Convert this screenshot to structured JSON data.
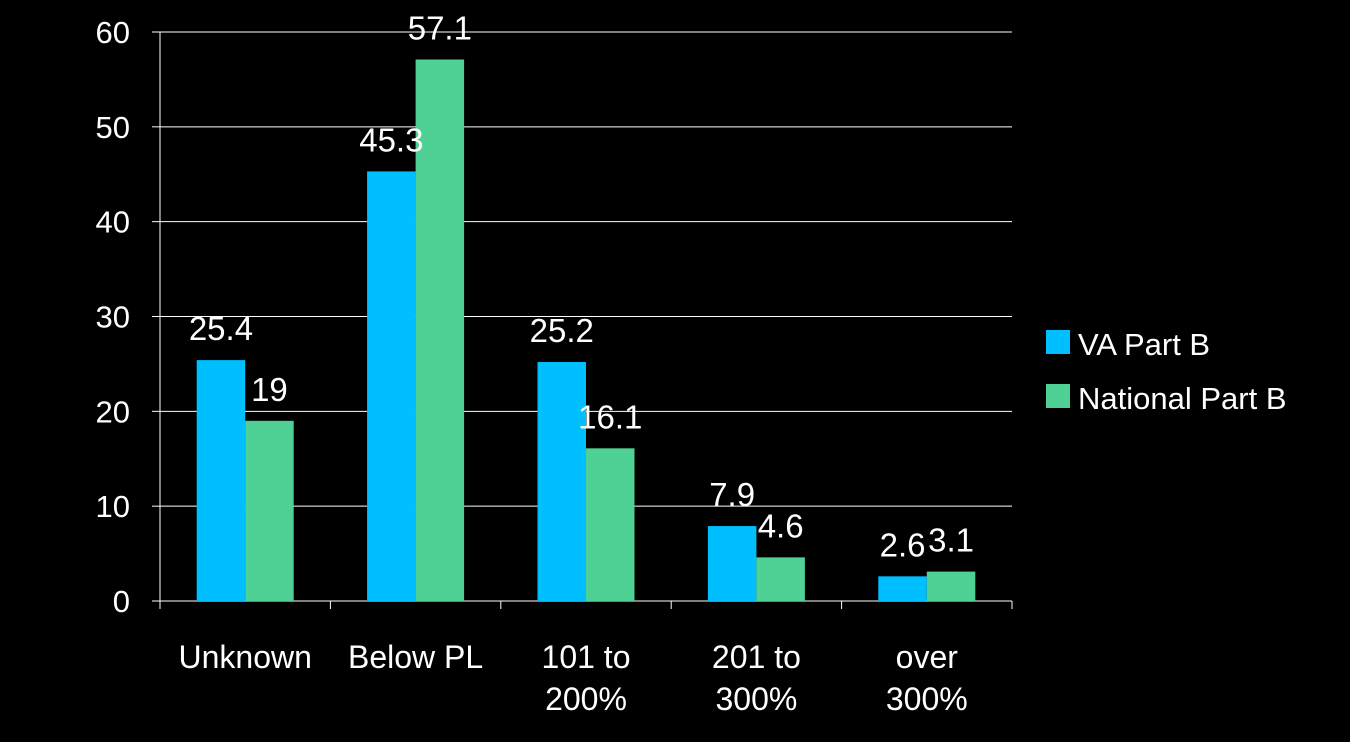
{
  "chart_data": {
    "type": "bar",
    "title": "",
    "xlabel": "",
    "ylabel": "",
    "categories": [
      [
        "Unknown"
      ],
      [
        "Below PL"
      ],
      [
        "101 to",
        "200%"
      ],
      [
        "201 to",
        "300%"
      ],
      [
        "over",
        "300%"
      ]
    ],
    "series": [
      {
        "name": "VA Part B",
        "color": "#00BFFF",
        "values": [
          25.4,
          45.3,
          25.2,
          7.9,
          2.6
        ],
        "labels": [
          "25.4",
          "45.3",
          "25.2",
          "7.9",
          "2.6"
        ]
      },
      {
        "name": "National Part B",
        "color": "#4FD196",
        "values": [
          19,
          57.1,
          16.1,
          4.6,
          3.1
        ],
        "labels": [
          "19",
          "57.1",
          "16.1",
          "4.6",
          "3.1"
        ]
      }
    ],
    "ylim": [
      0,
      60
    ],
    "yticks": [
      0,
      10,
      20,
      30,
      40,
      50,
      60
    ],
    "grid": true,
    "legend": "right",
    "background": "#000000",
    "text_color": "#FFFFFF"
  }
}
